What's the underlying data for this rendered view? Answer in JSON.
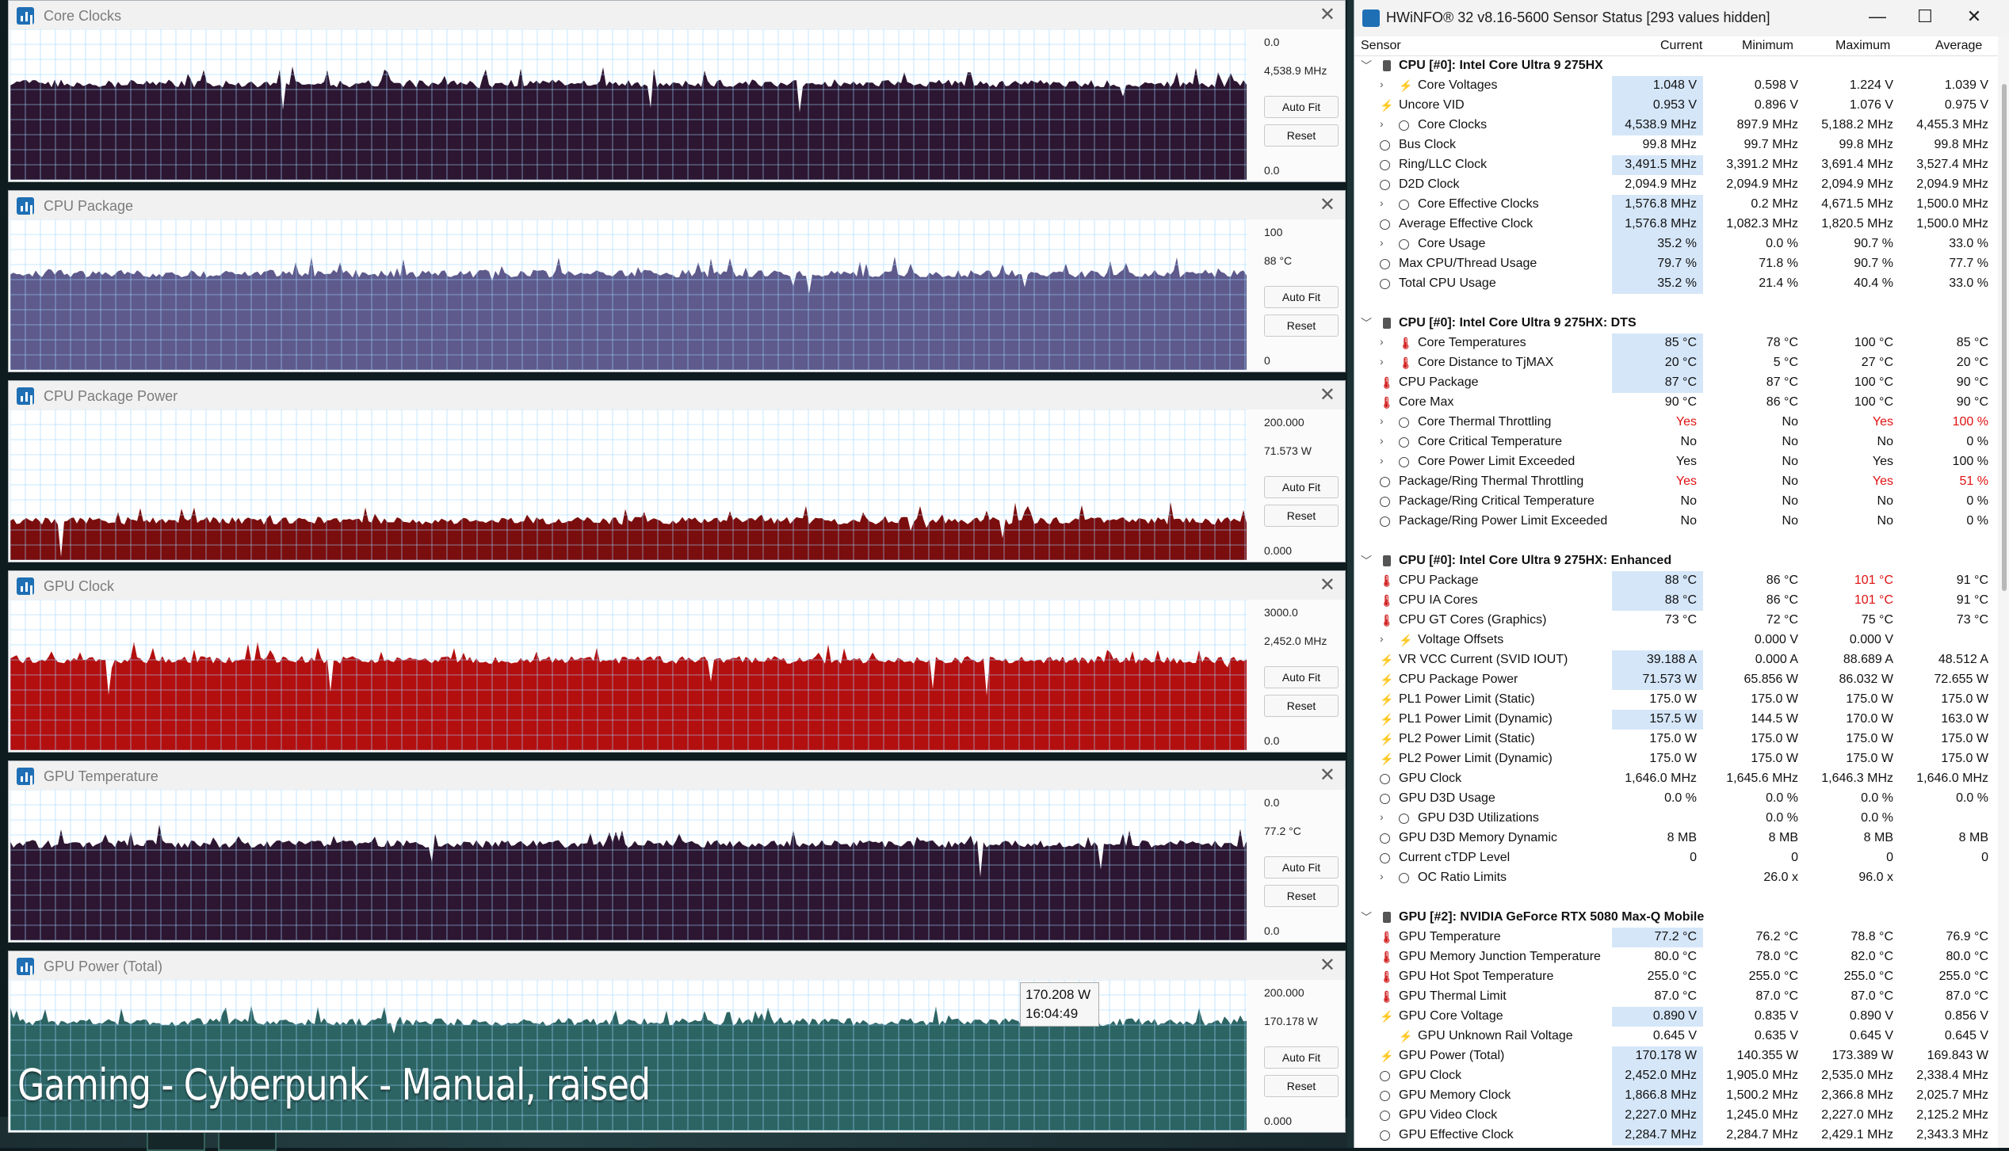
{
  "overlay_text": "Gaming - Cyberpunk - Manual, raised",
  "tooltip": {
    "value": "170.208 W",
    "time": "16:04:49"
  },
  "graphs": [
    {
      "title": "Core Clocks",
      "max": "0.0",
      "current": "4,538.9 MHz",
      "min": "0.0",
      "color": "#2d1631",
      "autofit": "Auto Fit",
      "reset": "Reset",
      "level": 0.64
    },
    {
      "title": "CPU Package",
      "max": "100",
      "current": "88 °C",
      "min": "0",
      "color": "#5e5a8c",
      "autofit": "Auto Fit",
      "reset": "Reset",
      "level": 0.64
    },
    {
      "title": "CPU Package Power",
      "max": "200.000",
      "current": "71.573 W",
      "min": "0.000",
      "color": "#7a0d0d",
      "autofit": "Auto Fit",
      "reset": "Reset",
      "level": 0.26
    },
    {
      "title": "GPU Clock",
      "max": "3000.0",
      "current": "2,452.0 MHz",
      "min": "0.0",
      "color": "#b30f0f",
      "autofit": "Auto Fit",
      "reset": "Reset",
      "level": 0.6
    },
    {
      "title": "GPU Temperature",
      "max": "0.0",
      "current": "77.2 °C",
      "min": "0.0",
      "color": "#2d1631",
      "autofit": "Auto Fit",
      "reset": "Reset",
      "level": 0.64
    },
    {
      "title": "GPU Power (Total)",
      "max": "200.000",
      "current": "170.178 W",
      "min": "0.000",
      "color": "#2c6463",
      "autofit": "Auto Fit",
      "reset": "Reset",
      "level": 0.72
    }
  ],
  "sensor": {
    "title": "HWiNFO® 32 v8.16-5600 Sensor Status [293 values hidden]",
    "controls": {
      "minimize": "—",
      "maximize": "☐",
      "close": "✕"
    },
    "columns": {
      "sensor": "Sensor",
      "current": "Current",
      "minimum": "Minimum",
      "maximum": "Maximum",
      "average": "Average"
    },
    "rows": [
      {
        "t": "group",
        "label": "CPU [#0]: Intel Core Ultra 9 275HX"
      },
      {
        "t": "row",
        "i": "bolt",
        "x": 1,
        "s": 1,
        "label": "Core Voltages",
        "cur": "1.048 V",
        "min": "0.598 V",
        "max": "1.224 V",
        "avg": "1.039 V",
        "hl": 1
      },
      {
        "t": "row",
        "i": "bolt",
        "label": "Uncore VID",
        "cur": "0.953 V",
        "min": "0.896 V",
        "max": "1.076 V",
        "avg": "0.975 V",
        "hl": 1
      },
      {
        "t": "row",
        "i": "clock",
        "x": 1,
        "s": 1,
        "label": "Core Clocks",
        "cur": "4,538.9 MHz",
        "min": "897.9 MHz",
        "max": "5,188.2 MHz",
        "avg": "4,455.3 MHz",
        "hl": 1
      },
      {
        "t": "row",
        "i": "clock",
        "label": "Bus Clock",
        "cur": "99.8 MHz",
        "min": "99.7 MHz",
        "max": "99.8 MHz",
        "avg": "99.8 MHz"
      },
      {
        "t": "row",
        "i": "clock",
        "label": "Ring/LLC Clock",
        "cur": "3,491.5 MHz",
        "min": "3,391.2 MHz",
        "max": "3,691.4 MHz",
        "avg": "3,527.4 MHz",
        "hl": 1
      },
      {
        "t": "row",
        "i": "clock",
        "label": "D2D Clock",
        "cur": "2,094.9 MHz",
        "min": "2,094.9 MHz",
        "max": "2,094.9 MHz",
        "avg": "2,094.9 MHz"
      },
      {
        "t": "row",
        "i": "clock",
        "x": 1,
        "s": 1,
        "label": "Core Effective Clocks",
        "cur": "1,576.8 MHz",
        "min": "0.2 MHz",
        "max": "4,671.5 MHz",
        "avg": "1,500.0 MHz",
        "hl": 1
      },
      {
        "t": "row",
        "i": "clock",
        "label": "Average Effective Clock",
        "cur": "1,576.8 MHz",
        "min": "1,082.3 MHz",
        "max": "1,820.5 MHz",
        "avg": "1,500.0 MHz",
        "hl": 1
      },
      {
        "t": "row",
        "i": "clock",
        "x": 1,
        "s": 1,
        "label": "Core Usage",
        "cur": "35.2 %",
        "min": "0.0 %",
        "max": "90.7 %",
        "avg": "33.0 %",
        "hl": 1
      },
      {
        "t": "row",
        "i": "clock",
        "label": "Max CPU/Thread Usage",
        "cur": "79.7 %",
        "min": "71.8 %",
        "max": "90.7 %",
        "avg": "77.7 %",
        "hl": 1
      },
      {
        "t": "row",
        "i": "clock",
        "label": "Total CPU Usage",
        "cur": "35.2 %",
        "min": "21.4 %",
        "max": "40.4 %",
        "avg": "33.0 %",
        "hl": 1
      },
      {
        "t": "blank"
      },
      {
        "t": "group",
        "label": "CPU [#0]: Intel Core Ultra 9 275HX: DTS"
      },
      {
        "t": "row",
        "i": "therm",
        "x": 1,
        "s": 1,
        "label": "Core Temperatures",
        "cur": "85 °C",
        "min": "78 °C",
        "max": "100 °C",
        "avg": "85 °C",
        "hl": 1
      },
      {
        "t": "row",
        "i": "therm",
        "x": 1,
        "s": 1,
        "label": "Core Distance to TjMAX",
        "cur": "20 °C",
        "min": "5 °C",
        "max": "27 °C",
        "avg": "20 °C",
        "hl": 1
      },
      {
        "t": "row",
        "i": "therm",
        "label": "CPU Package",
        "cur": "87 °C",
        "min": "87 °C",
        "max": "100 °C",
        "avg": "90 °C",
        "hl": 1
      },
      {
        "t": "row",
        "i": "therm",
        "label": "Core Max",
        "cur": "90 °C",
        "min": "86 °C",
        "max": "100 °C",
        "avg": "90 °C"
      },
      {
        "t": "row",
        "i": "clock",
        "x": 1,
        "s": 1,
        "label": "Core Thermal Throttling",
        "cur": "Yes",
        "min": "No",
        "max": "Yes",
        "avg": "100 %",
        "red": 1
      },
      {
        "t": "row",
        "i": "clock",
        "x": 1,
        "s": 1,
        "label": "Core Critical Temperature",
        "cur": "No",
        "min": "No",
        "max": "No",
        "avg": "0 %"
      },
      {
        "t": "row",
        "i": "clock",
        "x": 1,
        "s": 1,
        "label": "Core Power Limit Exceeded",
        "cur": "Yes",
        "min": "No",
        "max": "Yes",
        "avg": "100 %"
      },
      {
        "t": "row",
        "i": "clock",
        "label": "Package/Ring Thermal Throttling",
        "cur": "Yes",
        "min": "No",
        "max": "Yes",
        "avg": "51 %",
        "red": 1
      },
      {
        "t": "row",
        "i": "clock",
        "label": "Package/Ring Critical Temperature",
        "cur": "No",
        "min": "No",
        "max": "No",
        "avg": "0 %"
      },
      {
        "t": "row",
        "i": "clock",
        "label": "Package/Ring Power Limit Exceeded",
        "cur": "No",
        "min": "No",
        "max": "No",
        "avg": "0 %"
      },
      {
        "t": "blank"
      },
      {
        "t": "group",
        "label": "CPU [#0]: Intel Core Ultra 9 275HX: Enhanced"
      },
      {
        "t": "row",
        "i": "therm",
        "label": "CPU Package",
        "cur": "88 °C",
        "min": "86 °C",
        "max": "101 °C",
        "avg": "91 °C",
        "hl": 1,
        "redmax": 1
      },
      {
        "t": "row",
        "i": "therm",
        "label": "CPU IA Cores",
        "cur": "88 °C",
        "min": "86 °C",
        "max": "101 °C",
        "avg": "91 °C",
        "hl": 1,
        "redmax": 1
      },
      {
        "t": "row",
        "i": "therm",
        "label": "CPU GT Cores (Graphics)",
        "cur": "73 °C",
        "min": "72 °C",
        "max": "75 °C",
        "avg": "73 °C"
      },
      {
        "t": "row",
        "i": "bolt",
        "x": 1,
        "s": 1,
        "label": "Voltage Offsets",
        "cur": "",
        "min": "0.000 V",
        "max": "0.000 V",
        "avg": ""
      },
      {
        "t": "row",
        "i": "bolt",
        "label": "VR VCC Current (SVID IOUT)",
        "cur": "39.188 A",
        "min": "0.000 A",
        "max": "88.689 A",
        "avg": "48.512 A",
        "hl": 1
      },
      {
        "t": "row",
        "i": "bolt",
        "label": "CPU Package Power",
        "cur": "71.573 W",
        "min": "65.856 W",
        "max": "86.032 W",
        "avg": "72.655 W",
        "hl": 1
      },
      {
        "t": "row",
        "i": "bolt",
        "label": "PL1 Power Limit (Static)",
        "cur": "175.0 W",
        "min": "175.0 W",
        "max": "175.0 W",
        "avg": "175.0 W"
      },
      {
        "t": "row",
        "i": "bolt",
        "label": "PL1 Power Limit (Dynamic)",
        "cur": "157.5 W",
        "min": "144.5 W",
        "max": "170.0 W",
        "avg": "163.0 W",
        "hl": 1
      },
      {
        "t": "row",
        "i": "bolt",
        "label": "PL2 Power Limit (Static)",
        "cur": "175.0 W",
        "min": "175.0 W",
        "max": "175.0 W",
        "avg": "175.0 W"
      },
      {
        "t": "row",
        "i": "bolt",
        "label": "PL2 Power Limit (Dynamic)",
        "cur": "175.0 W",
        "min": "175.0 W",
        "max": "175.0 W",
        "avg": "175.0 W"
      },
      {
        "t": "row",
        "i": "clock",
        "label": "GPU Clock",
        "cur": "1,646.0 MHz",
        "min": "1,645.6 MHz",
        "max": "1,646.3 MHz",
        "avg": "1,646.0 MHz"
      },
      {
        "t": "row",
        "i": "clock",
        "label": "GPU D3D Usage",
        "cur": "0.0 %",
        "min": "0.0 %",
        "max": "0.0 %",
        "avg": "0.0 %"
      },
      {
        "t": "row",
        "i": "clock",
        "x": 1,
        "s": 1,
        "label": "GPU D3D Utilizations",
        "cur": "",
        "min": "0.0 %",
        "max": "0.0 %",
        "avg": ""
      },
      {
        "t": "row",
        "i": "clock",
        "label": "GPU D3D Memory Dynamic",
        "cur": "8 MB",
        "min": "8 MB",
        "max": "8 MB",
        "avg": "8 MB"
      },
      {
        "t": "row",
        "i": "clock",
        "label": "Current cTDP Level",
        "cur": "0",
        "min": "0",
        "max": "0",
        "avg": "0"
      },
      {
        "t": "row",
        "i": "clock",
        "x": 1,
        "s": 1,
        "label": "OC Ratio Limits",
        "cur": "",
        "min": "26.0 x",
        "max": "96.0 x",
        "avg": ""
      },
      {
        "t": "blank"
      },
      {
        "t": "group",
        "label": "GPU [#2]: NVIDIA  GeForce RTX 5080 Max-Q Mobile"
      },
      {
        "t": "row",
        "i": "therm",
        "label": "GPU Temperature",
        "cur": "77.2 °C",
        "min": "76.2 °C",
        "max": "78.8 °C",
        "avg": "76.9 °C",
        "hl": 1
      },
      {
        "t": "row",
        "i": "therm",
        "label": "GPU Memory Junction Temperature",
        "cur": "80.0 °C",
        "min": "78.0 °C",
        "max": "82.0 °C",
        "avg": "80.0 °C"
      },
      {
        "t": "row",
        "i": "therm",
        "label": "GPU Hot Spot Temperature",
        "cur": "255.0 °C",
        "min": "255.0 °C",
        "max": "255.0 °C",
        "avg": "255.0 °C"
      },
      {
        "t": "row",
        "i": "therm",
        "label": "GPU Thermal Limit",
        "cur": "87.0 °C",
        "min": "87.0 °C",
        "max": "87.0 °C",
        "avg": "87.0 °C"
      },
      {
        "t": "row",
        "i": "bolt",
        "label": "GPU Core Voltage",
        "cur": "0.890 V",
        "min": "0.835 V",
        "max": "0.890 V",
        "avg": "0.856 V",
        "hl": 1
      },
      {
        "t": "row",
        "i": "bolt",
        "s": 1,
        "label": "GPU Unknown Rail Voltage",
        "cur": "0.645 V",
        "min": "0.635 V",
        "max": "0.645 V",
        "avg": "0.645 V"
      },
      {
        "t": "row",
        "i": "bolt",
        "label": "GPU Power (Total)",
        "cur": "170.178 W",
        "min": "140.355 W",
        "max": "173.389 W",
        "avg": "169.843 W",
        "hl": 1
      },
      {
        "t": "row",
        "i": "clock",
        "label": "GPU Clock",
        "cur": "2,452.0 MHz",
        "min": "1,905.0 MHz",
        "max": "2,535.0 MHz",
        "avg": "2,338.4 MHz",
        "hl": 1
      },
      {
        "t": "row",
        "i": "clock",
        "label": "GPU Memory Clock",
        "cur": "1,866.8 MHz",
        "min": "1,500.2 MHz",
        "max": "2,366.8 MHz",
        "avg": "2,025.7 MHz",
        "hl": 1
      },
      {
        "t": "row",
        "i": "clock",
        "label": "GPU Video Clock",
        "cur": "2,227.0 MHz",
        "min": "1,245.0 MHz",
        "max": "2,227.0 MHz",
        "avg": "2,125.2 MHz",
        "hl": 1
      },
      {
        "t": "row",
        "i": "clock",
        "label": "GPU Effective Clock",
        "cur": "2,284.7 MHz",
        "min": "2,284.7 MHz",
        "max": "2,429.1 MHz",
        "avg": "2,343.3 MHz",
        "hl": 1
      }
    ]
  }
}
